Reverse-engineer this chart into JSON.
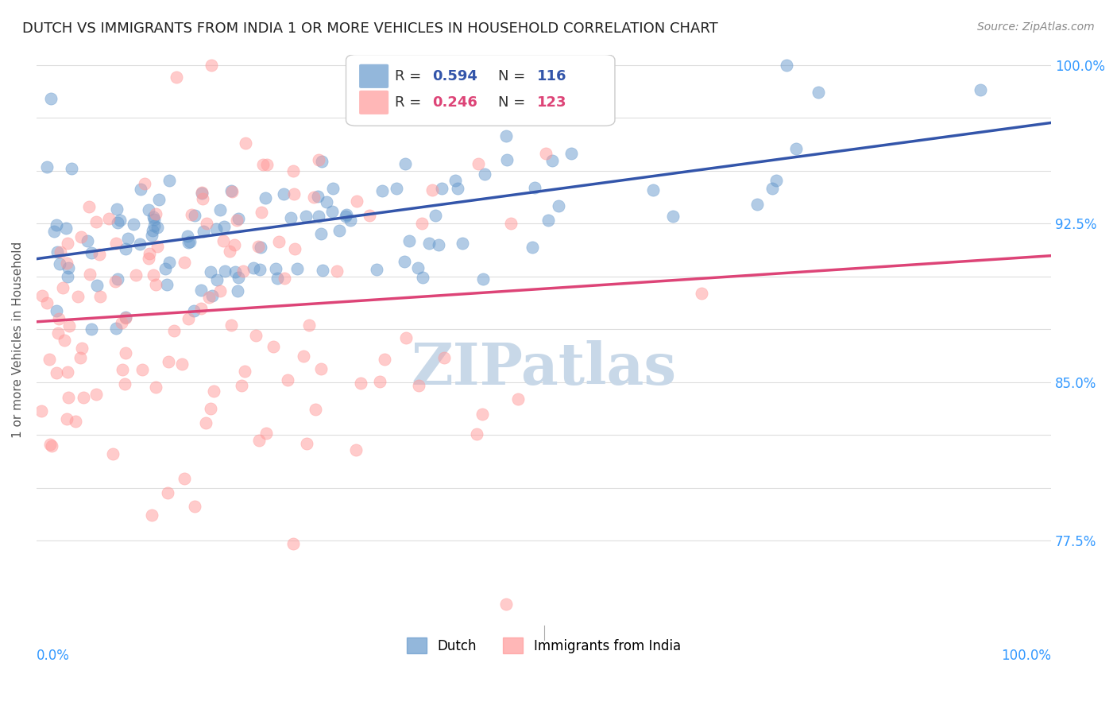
{
  "title": "DUTCH VS IMMIGRANTS FROM INDIA 1 OR MORE VEHICLES IN HOUSEHOLD CORRELATION CHART",
  "source": "Source: ZipAtlas.com",
  "ylabel": "1 or more Vehicles in Household",
  "xlim": [
    0.0,
    1.0
  ],
  "ylim": [
    0.735,
    1.005
  ],
  "ytick_vals": [
    0.775,
    0.8,
    0.825,
    0.85,
    0.875,
    0.9,
    0.925,
    0.95,
    0.975,
    1.0
  ],
  "ytick_labels": [
    "77.5%",
    "",
    "",
    "85.0%",
    "",
    "",
    "92.5%",
    "",
    "",
    "100.0%"
  ],
  "dutch_R": 0.594,
  "dutch_N": 116,
  "india_R": 0.246,
  "india_N": 123,
  "dutch_color": "#6699cc",
  "india_color": "#ff9999",
  "trendline_dutch_color": "#3355aa",
  "trendline_india_color": "#dd4477",
  "background_color": "#ffffff",
  "watermark_color": "#c8d8e8",
  "title_fontsize": 13,
  "source_fontsize": 10,
  "legend_fontsize": 13,
  "axis_label_color": "#3399ff",
  "marker_size": 120,
  "marker_alpha": 0.5,
  "legend_R_color": "#3355aa",
  "legend_R2_color": "#dd4477"
}
